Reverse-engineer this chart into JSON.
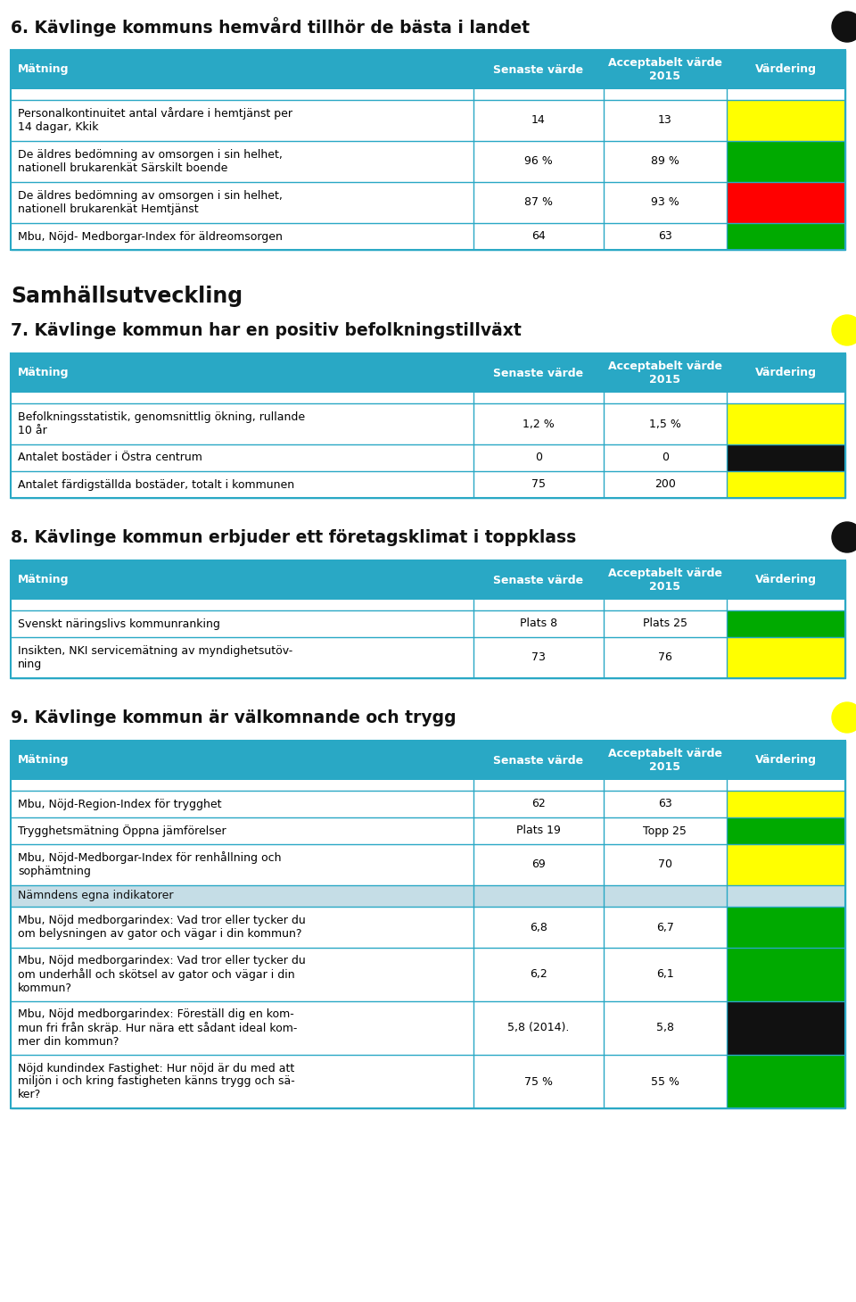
{
  "bg_color": "#ffffff",
  "header_color": "#29a8c5",
  "header_text_color": "#ffffff",
  "subheader_color": "#c5dde6",
  "border_color": "#29a8c5",
  "section6": {
    "title": "6. Kävlinge kommuns hemvård tillhör de bästa i landet",
    "indicator_color": "#111111",
    "rows": [
      {
        "label": "Personalkontinuitet antal vårdare i hemtjänst per\n14 dagar, Kkik",
        "senaste": "14",
        "acceptabelt": "13",
        "color": "#ffff00"
      },
      {
        "label": "De äldres bedömning av omsorgen i sin helhet,\nnationell brukarenkät Särskilt boende",
        "senaste": "96 %",
        "acceptabelt": "89 %",
        "color": "#00aa00"
      },
      {
        "label": "De äldres bedömning av omsorgen i sin helhet,\nnationell brukarenkät Hemtjänst",
        "senaste": "87 %",
        "acceptabelt": "93 %",
        "color": "#ff0000"
      },
      {
        "label": "Mbu, Nöjd- Medborgar-Index för äldreomsorgen",
        "senaste": "64",
        "acceptabelt": "63",
        "color": "#00aa00"
      }
    ]
  },
  "samhall_title": "Samhällsutveckling",
  "section7": {
    "title": "7. Kävlinge kommun har en positiv befolkningstillväxt",
    "indicator_color": "#ffff00",
    "rows": [
      {
        "label": "Befolkningsstatistik, genomsnittlig ökning, rullande\n10 år",
        "senaste": "1,2 %",
        "acceptabelt": "1,5 %",
        "color": "#ffff00"
      },
      {
        "label": "Antalet bostäder i Östra centrum",
        "senaste": "0",
        "acceptabelt": "0",
        "color": "#111111"
      },
      {
        "label": "Antalet färdigställda bostäder, totalt i kommunen",
        "senaste": "75",
        "acceptabelt": "200",
        "color": "#ffff00"
      }
    ]
  },
  "section8": {
    "title": "8. Kävlinge kommun erbjuder ett företagsklimat i toppklass",
    "indicator_color": "#111111",
    "rows": [
      {
        "label": "Svenskt näringslivs kommunranking",
        "senaste": "Plats 8",
        "acceptabelt": "Plats 25",
        "color": "#00aa00"
      },
      {
        "label": "Insikten, NKI servicemätning av myndighetsutöv-\nning",
        "senaste": "73",
        "acceptabelt": "76",
        "color": "#ffff00"
      }
    ]
  },
  "section9": {
    "title": "9. Kävlinge kommun är välkomnande och trygg",
    "indicator_color": "#ffff00",
    "rows": [
      {
        "label": "Mbu, Nöjd-Region-Index för trygghet",
        "senaste": "62",
        "acceptabelt": "63",
        "color": "#ffff00"
      },
      {
        "label": "Trygghetsmätning Öppna jämförelser",
        "senaste": "Plats 19",
        "acceptabelt": "Topp 25",
        "color": "#00aa00"
      },
      {
        "label": "Mbu, Nöjd-Medborgar-Index för renhållning och\nsophämtning",
        "senaste": "69",
        "acceptabelt": "70",
        "color": "#ffff00"
      },
      {
        "label": "Nämndens egna indikatorer",
        "senaste": "",
        "acceptabelt": "",
        "color": "#c5dde6",
        "is_subheader": true
      },
      {
        "label": "Mbu, Nöjd medborgarindex: Vad tror eller tycker du\nom belysningen av gator och vägar i din kommun?",
        "senaste": "6,8",
        "acceptabelt": "6,7",
        "color": "#00aa00"
      },
      {
        "label": "Mbu, Nöjd medborgarindex: Vad tror eller tycker du\nom underhåll och skötsel av gator och vägar i din\nkommun?",
        "senaste": "6,2",
        "acceptabelt": "6,1",
        "color": "#00aa00"
      },
      {
        "label": "Mbu, Nöjd medborgarindex: Föreställ dig en kom-\nmun fri från skräp. Hur nära ett sådant ideal kom-\nmer din kommun?",
        "senaste": "5,8 (2014).",
        "acceptabelt": "5,8",
        "color": "#111111"
      },
      {
        "label": "Nöjd kundindex Fastighet: Hur nöjd är du med att\nmiljön i och kring fastigheten känns trygg och sä-\nker?",
        "senaste": "75 %",
        "acceptabelt": "55 %",
        "color": "#00aa00"
      }
    ]
  }
}
